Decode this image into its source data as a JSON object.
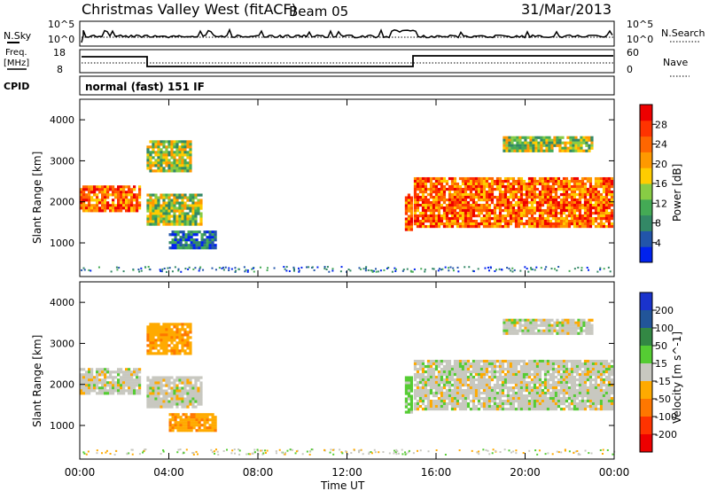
{
  "header": {
    "station": "Christmas Valley West (fitACF)",
    "beam": "Beam 05",
    "date": "31/Mar/2013"
  },
  "top_panels": {
    "nsky_label": "N.Sky",
    "nsky_ticks": [
      "10^5",
      "10^0"
    ],
    "nsearch_ticks": [
      "10^5",
      "10^0"
    ],
    "nsearch_label": "N.Search",
    "freq_label_1": "Freq.",
    "freq_label_2": "[MHz]",
    "freq_ticks": [
      "18",
      "8"
    ],
    "nave_ticks": [
      "60",
      "0"
    ],
    "nave_label": "Nave",
    "cpid_label": "CPID",
    "cpid_value": "normal (fast) 151 IF"
  },
  "axes": {
    "ylabel": "Slant Range [km]",
    "xlabel": "Time UT",
    "y_ticks": [
      "1000",
      "2000",
      "3000",
      "4000"
    ],
    "x_ticks": [
      "00:00",
      "04:00",
      "08:00",
      "12:00",
      "16:00",
      "20:00",
      "00:00"
    ]
  },
  "colorbars": {
    "power": {
      "label": "Power [dB]",
      "ticks": [
        "4",
        "8",
        "12",
        "16",
        "20",
        "24",
        "28"
      ],
      "colors": [
        "#0022ee",
        "#2255aa",
        "#338866",
        "#44aa55",
        "#88cc44",
        "#ffcc00",
        "#ff9900",
        "#ff6600",
        "#ff3300",
        "#ee0000"
      ]
    },
    "velocity": {
      "label": "Velocity [m s^-1]",
      "ticks": [
        "200",
        "100",
        "50",
        "15",
        "-15",
        "-50",
        "-100",
        "-200"
      ],
      "colors": [
        "#1a33cc",
        "#225599",
        "#338844",
        "#55cc33",
        "#c8c8c0",
        "#ffaa00",
        "#ff7700",
        "#ff3300",
        "#ee0000"
      ]
    }
  },
  "chart_data": [
    {
      "type": "heatmap",
      "name": "power",
      "x_range_hours": [
        0,
        24
      ],
      "ylim_km": [
        180,
        4500
      ],
      "bands": [
        {
          "t0": 0.0,
          "t1": 2.8,
          "r0": 1750,
          "r1": 2400,
          "level": "high"
        },
        {
          "t0": 3.0,
          "t1": 5.5,
          "r0": 1400,
          "r1": 2200,
          "level": "mid"
        },
        {
          "t0": 3.0,
          "t1": 5.0,
          "r0": 2700,
          "r1": 3500,
          "level": "mid"
        },
        {
          "t0": 4.0,
          "t1": 6.2,
          "r0": 850,
          "r1": 1300,
          "level": "low"
        },
        {
          "t0": 14.6,
          "t1": 15.0,
          "r0": 1300,
          "r1": 2200,
          "level": "high"
        },
        {
          "t0": 15.0,
          "t1": 24.0,
          "r0": 1400,
          "r1": 2600,
          "level": "high"
        },
        {
          "t0": 19.0,
          "t1": 23.0,
          "r0": 3200,
          "r1": 3600,
          "level": "mid"
        }
      ]
    },
    {
      "type": "heatmap",
      "name": "velocity",
      "x_range_hours": [
        0,
        24
      ],
      "ylim_km": [
        180,
        4500
      ],
      "bands": [
        {
          "t0": 0.0,
          "t1": 2.8,
          "r0": 1750,
          "r1": 2400,
          "v": 0
        },
        {
          "t0": 3.0,
          "t1": 5.5,
          "r0": 1400,
          "r1": 2200,
          "v": 0
        },
        {
          "t0": 3.0,
          "t1": 5.0,
          "r0": 2700,
          "r1": 3500,
          "v": -40
        },
        {
          "t0": 4.0,
          "t1": 6.2,
          "r0": 850,
          "r1": 1300,
          "v": -40
        },
        {
          "t0": 14.6,
          "t1": 15.0,
          "r0": 1300,
          "r1": 2200,
          "v": 30
        },
        {
          "t0": 15.0,
          "t1": 24.0,
          "r0": 1400,
          "r1": 2600,
          "v": 0
        },
        {
          "t0": 19.0,
          "t1": 23.0,
          "r0": 3200,
          "r1": 3600,
          "v": 0
        }
      ]
    }
  ]
}
